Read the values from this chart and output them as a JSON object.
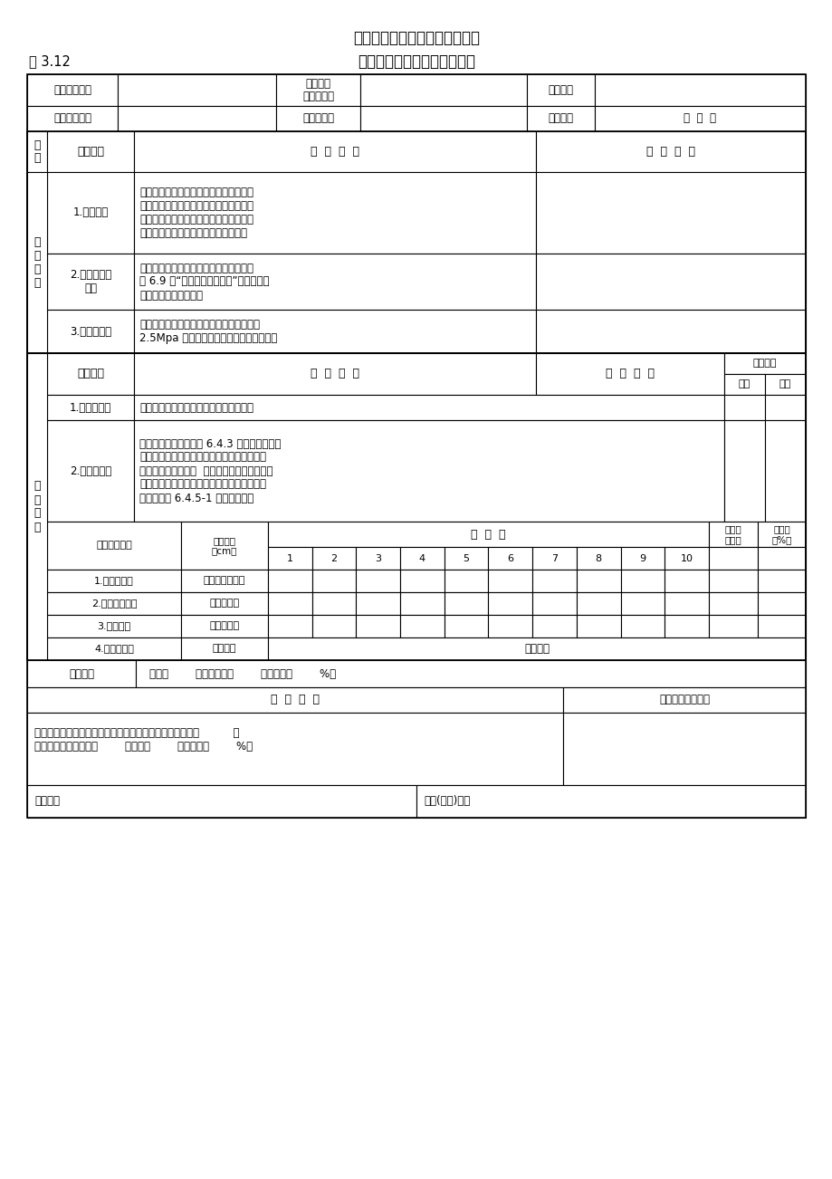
{
  "title_line1": "四川省小（微）型农田水利工程",
  "title_line2": "小型堤防单元工程质量评定表",
  "table_number": "表 3.12",
  "bg": "#ffffff"
}
